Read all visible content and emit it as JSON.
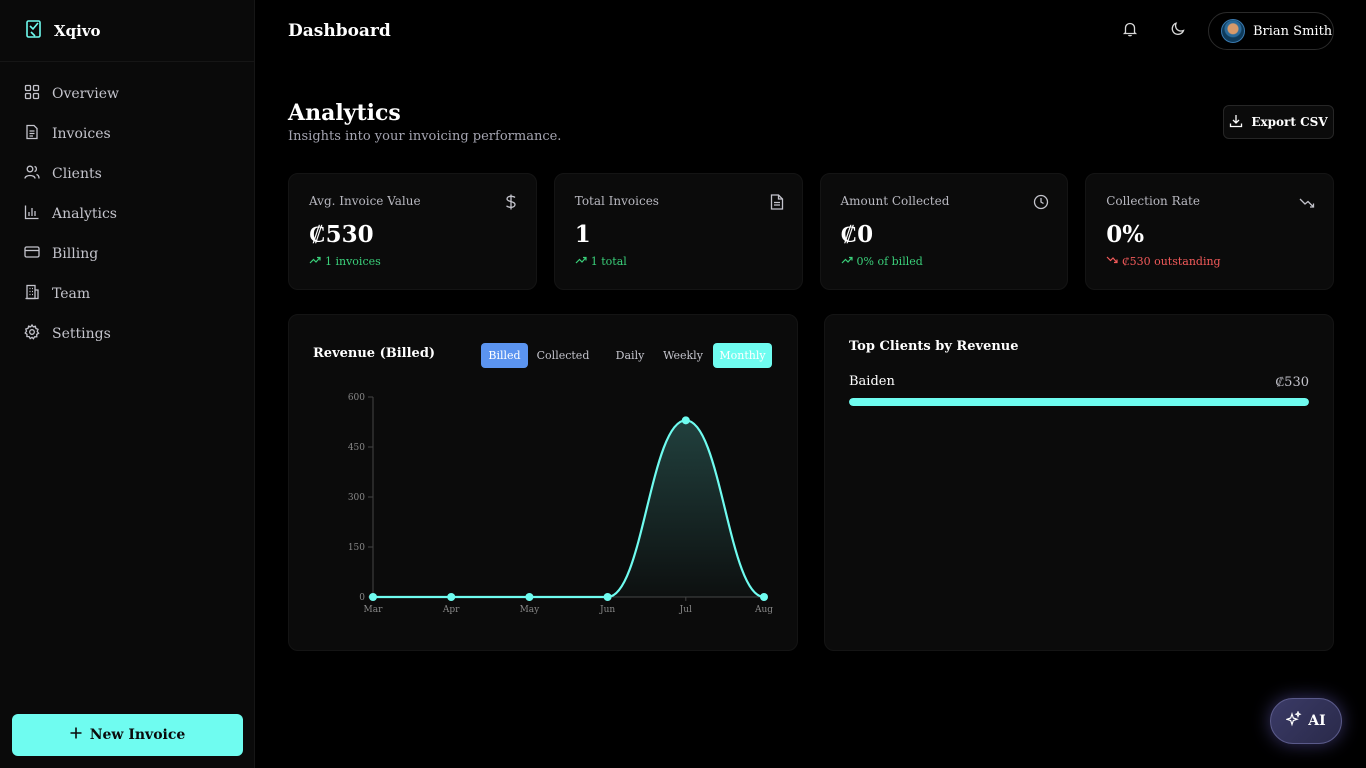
{
  "brand": {
    "name": "Xqivo"
  },
  "sidebar": {
    "items": [
      {
        "label": "Overview",
        "icon": "grid-icon"
      },
      {
        "label": "Invoices",
        "icon": "file-icon"
      },
      {
        "label": "Clients",
        "icon": "users-icon"
      },
      {
        "label": "Analytics",
        "icon": "bar-chart-icon"
      },
      {
        "label": "Billing",
        "icon": "credit-card-icon"
      },
      {
        "label": "Team",
        "icon": "building-icon"
      },
      {
        "label": "Settings",
        "icon": "gear-icon"
      }
    ],
    "new_invoice_label": "New Invoice"
  },
  "header": {
    "title": "Dashboard",
    "user_name": "Brian Smith"
  },
  "page": {
    "title": "Analytics",
    "subtitle": "Insights into your invoicing performance.",
    "export_label": "Export CSV"
  },
  "stats": [
    {
      "label": "Avg. Invoice Value",
      "value": "₡530",
      "trend": "1 invoices",
      "direction": "up",
      "icon": "dollar-icon"
    },
    {
      "label": "Total Invoices",
      "value": "1",
      "trend": "1 total",
      "direction": "up",
      "icon": "document-icon"
    },
    {
      "label": "Amount Collected",
      "value": "₡0",
      "trend": "0% of billed",
      "direction": "up",
      "icon": "clock-icon"
    },
    {
      "label": "Collection Rate",
      "value": "0%",
      "trend": "₡530 outstanding",
      "direction": "down",
      "icon": "trending-down-icon"
    }
  ],
  "chart": {
    "title": "Revenue (Billed)",
    "tabs": {
      "billed": "Billed",
      "collected": "Collected",
      "daily": "Daily",
      "weekly": "Weekly",
      "monthly": "Monthly"
    }
  },
  "chart_data": {
    "type": "area",
    "categories": [
      "Mar",
      "Apr",
      "May",
      "Jun",
      "Jul",
      "Aug"
    ],
    "values": [
      0,
      0,
      0,
      0,
      530,
      0
    ],
    "yticks": [
      0,
      150,
      300,
      450,
      600
    ],
    "ylim": [
      0,
      600
    ],
    "color": "#6ffcf0"
  },
  "clients": {
    "title": "Top Clients by Revenue",
    "items": [
      {
        "name": "Baiden",
        "amount": "₡530",
        "share": 1.0
      }
    ]
  },
  "ai": {
    "label": "AI"
  },
  "colors": {
    "accent": "#6ffcf0",
    "blue": "#5b94f0",
    "up": "#3ad07a",
    "down": "#f25a5a"
  }
}
